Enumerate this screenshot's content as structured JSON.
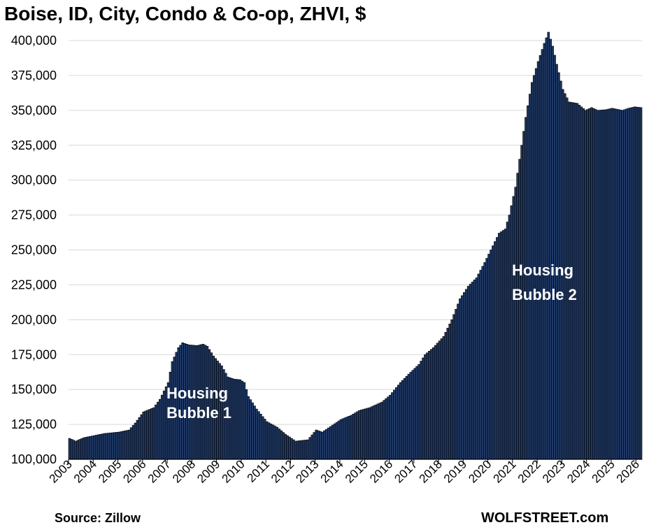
{
  "title": "Boise, ID, City, Condo & Co-op, ZHVI, $",
  "source": "Source: Zillow",
  "brand": "WOLFSTREET.com",
  "colors": {
    "bar_fill": "#1F3864",
    "bar_stroke": "#000000",
    "grid": "#d9d9d9",
    "annotation_text": "#ffffff"
  },
  "chart_data": {
    "type": "bar",
    "frequency": "monthly",
    "ylim": [
      100000,
      410000
    ],
    "grid": true,
    "legend": "none",
    "yticks": [
      "100,000",
      "125,000",
      "150,000",
      "175,000",
      "200,000",
      "225,000",
      "250,000",
      "275,000",
      "300,000",
      "325,000",
      "350,000",
      "375,000",
      "400,000"
    ],
    "xticks": [
      "2003",
      "2004",
      "2005",
      "2006",
      "2007",
      "2008",
      "2009",
      "2010",
      "2011",
      "2012",
      "2013",
      "2014",
      "2015",
      "2016",
      "2017",
      "2018",
      "2019",
      "2020",
      "2021",
      "2022",
      "2023",
      "2024",
      "2025",
      "2026"
    ],
    "annotations": [
      {
        "lines": [
          "Housing",
          "Bubble 1"
        ]
      },
      {
        "lines": [
          "Housing",
          "Bubble 2"
        ]
      }
    ],
    "anchors": [
      [
        "2003-01",
        115000
      ],
      [
        "2003-04",
        113000
      ],
      [
        "2003-08",
        115500
      ],
      [
        "2004-01",
        117000
      ],
      [
        "2004-06",
        118500
      ],
      [
        "2005-01",
        119500
      ],
      [
        "2005-06",
        121000
      ],
      [
        "2005-09",
        126000
      ],
      [
        "2006-01",
        134000
      ],
      [
        "2006-06",
        137000
      ],
      [
        "2006-09",
        143000
      ],
      [
        "2007-01",
        155000
      ],
      [
        "2007-03",
        170000
      ],
      [
        "2007-06",
        180000
      ],
      [
        "2007-08",
        183500
      ],
      [
        "2007-11",
        182000
      ],
      [
        "2008-03",
        181500
      ],
      [
        "2008-06",
        182500
      ],
      [
        "2008-08",
        181000
      ],
      [
        "2008-11",
        174000
      ],
      [
        "2009-03",
        167000
      ],
      [
        "2009-06",
        159000
      ],
      [
        "2009-09",
        157500
      ],
      [
        "2009-12",
        157000
      ],
      [
        "2010-02",
        155000
      ],
      [
        "2010-04",
        145000
      ],
      [
        "2010-08",
        136000
      ],
      [
        "2011-01",
        127000
      ],
      [
        "2011-06",
        123000
      ],
      [
        "2011-10",
        118000
      ],
      [
        "2012-03",
        113000
      ],
      [
        "2012-09",
        114000
      ],
      [
        "2013-01",
        121000
      ],
      [
        "2013-04",
        119500
      ],
      [
        "2013-08",
        123500
      ],
      [
        "2014-01",
        128500
      ],
      [
        "2014-06",
        131500
      ],
      [
        "2014-10",
        135000
      ],
      [
        "2015-03",
        137000
      ],
      [
        "2015-09",
        141000
      ],
      [
        "2016-01",
        146000
      ],
      [
        "2016-06",
        155000
      ],
      [
        "2016-10",
        161000
      ],
      [
        "2017-03",
        168000
      ],
      [
        "2017-06",
        175000
      ],
      [
        "2017-10",
        180000
      ],
      [
        "2018-03",
        188000
      ],
      [
        "2018-07",
        200000
      ],
      [
        "2018-11",
        215000
      ],
      [
        "2019-03",
        224000
      ],
      [
        "2019-07",
        230000
      ],
      [
        "2019-11",
        241000
      ],
      [
        "2020-03",
        253000
      ],
      [
        "2020-06",
        262000
      ],
      [
        "2020-09",
        265000
      ],
      [
        "2020-11",
        275000
      ],
      [
        "2021-02",
        295000
      ],
      [
        "2021-05",
        325000
      ],
      [
        "2021-07",
        345000
      ],
      [
        "2021-10",
        370000
      ],
      [
        "2022-01",
        385000
      ],
      [
        "2022-04",
        398000
      ],
      [
        "2022-06",
        406000
      ],
      [
        "2022-08",
        396000
      ],
      [
        "2022-10",
        383000
      ],
      [
        "2023-01",
        365000
      ],
      [
        "2023-04",
        356000
      ],
      [
        "2023-08",
        355000
      ],
      [
        "2023-12",
        350000
      ],
      [
        "2024-03",
        352000
      ],
      [
        "2024-06",
        350000
      ],
      [
        "2024-10",
        350500
      ],
      [
        "2025-01",
        351500
      ],
      [
        "2025-06",
        350000
      ],
      [
        "2025-09",
        351500
      ],
      [
        "2025-12",
        352500
      ],
      [
        "2026-03",
        352000
      ]
    ]
  }
}
